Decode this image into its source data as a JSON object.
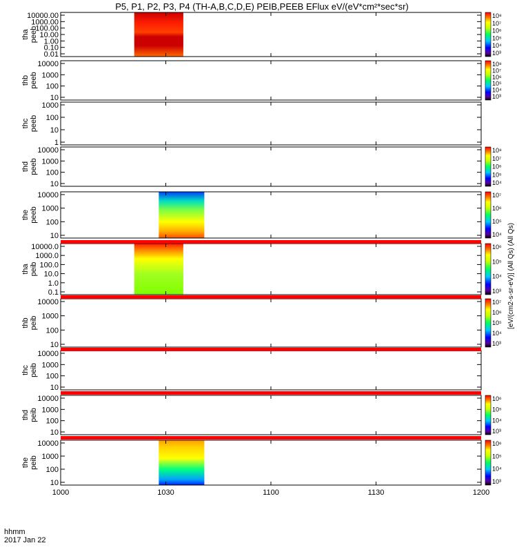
{
  "chart_data": {
    "type": "heatmap",
    "title": "P5, P1, P2, P3, P4 (TH-A,B,C,D,E) PEIB,PEEB EFlux eV/(eV*cm²*sec*sr)",
    "x_ticks": [
      "1000",
      "1030",
      "1100",
      "1130",
      "1200"
    ],
    "x_range_minutes": [
      0,
      120
    ],
    "footer_left": [
      "hhmm",
      "2017 Jan 22"
    ],
    "colorbar_label": "[eV/(cm2-s-sr-eV)] (All Qs) (All Qs)",
    "panels": [
      {
        "id": "tha-peeb",
        "label1": "tha",
        "label2": "peeb",
        "yticks": [
          "10000.00",
          "1000.00",
          "100.00",
          "10.00",
          "1.00",
          "0.10",
          "0.01"
        ],
        "data_start_min": 21,
        "data_end_min": 35,
        "colorbar_ticks": [
          "10⁸",
          "10⁷",
          "10⁶",
          "10⁵",
          "10⁴",
          "10³"
        ]
      },
      {
        "id": "thb-peeb",
        "label1": "thb",
        "label2": "peeb",
        "yticks": [
          "10000",
          "1000",
          "100",
          "10"
        ],
        "data_start_min": null,
        "data_end_min": null,
        "colorbar_ticks": [
          "10⁸",
          "10⁷",
          "10⁶",
          "10⁵",
          "10⁴",
          "10³"
        ]
      },
      {
        "id": "thc-peeb",
        "label1": "thc",
        "label2": "peeb",
        "yticks": [
          "1000",
          "100",
          "10",
          "1"
        ],
        "data_start_min": null,
        "data_end_min": null,
        "colorbar_ticks": []
      },
      {
        "id": "thd-peeb",
        "label1": "thd",
        "label2": "peeb",
        "yticks": [
          "10000",
          "1000",
          "100",
          "10"
        ],
        "data_start_min": null,
        "data_end_min": null,
        "colorbar_ticks": [
          "10⁸",
          "10⁷",
          "10⁶",
          "10⁵",
          "10⁴"
        ]
      },
      {
        "id": "the-peeb",
        "label1": "the",
        "label2": "peeb",
        "yticks": [
          "10000",
          "1000",
          "100",
          "10"
        ],
        "data_start_min": 28,
        "data_end_min": 41,
        "colorbar_ticks": [
          "10⁷",
          "10⁶",
          "10⁵",
          "10⁴"
        ]
      },
      {
        "id": "tha-peib",
        "label1": "tha",
        "label2": "peib",
        "yticks": [
          "10000.0",
          "1000.0",
          "100.0",
          "10.0",
          "1.0",
          "0.1"
        ],
        "data_start_min": 21,
        "data_end_min": 35,
        "colorbar_ticks": [
          "10⁶",
          "10⁵",
          "10⁴",
          "10³"
        ]
      },
      {
        "id": "thb-peib",
        "label1": "thb",
        "label2": "peib",
        "yticks": [
          "10000",
          "1000",
          "100",
          "10"
        ],
        "data_start_min": null,
        "data_end_min": null,
        "colorbar_ticks": [
          "10⁷",
          "10⁶",
          "10⁵",
          "10⁴",
          "10³"
        ]
      },
      {
        "id": "thc-peib",
        "label1": "thc",
        "label2": "peib",
        "yticks": [
          "10000",
          "1000",
          "100",
          "10"
        ],
        "data_start_min": null,
        "data_end_min": null,
        "colorbar_ticks": []
      },
      {
        "id": "thd-peib",
        "label1": "thd",
        "label2": "peib",
        "yticks": [
          "10000",
          "1000",
          "100",
          "10"
        ],
        "data_start_min": null,
        "data_end_min": null,
        "colorbar_ticks": [
          "10⁶",
          "10⁵",
          "10⁴",
          "10³"
        ]
      },
      {
        "id": "the-peib",
        "label1": "the",
        "label2": "peib",
        "yticks": [
          "10000",
          "1000",
          "100",
          "10"
        ],
        "data_start_min": 28,
        "data_end_min": 41,
        "colorbar_ticks": [
          "10⁶",
          "10⁵",
          "10⁴",
          "10³"
        ]
      }
    ]
  }
}
